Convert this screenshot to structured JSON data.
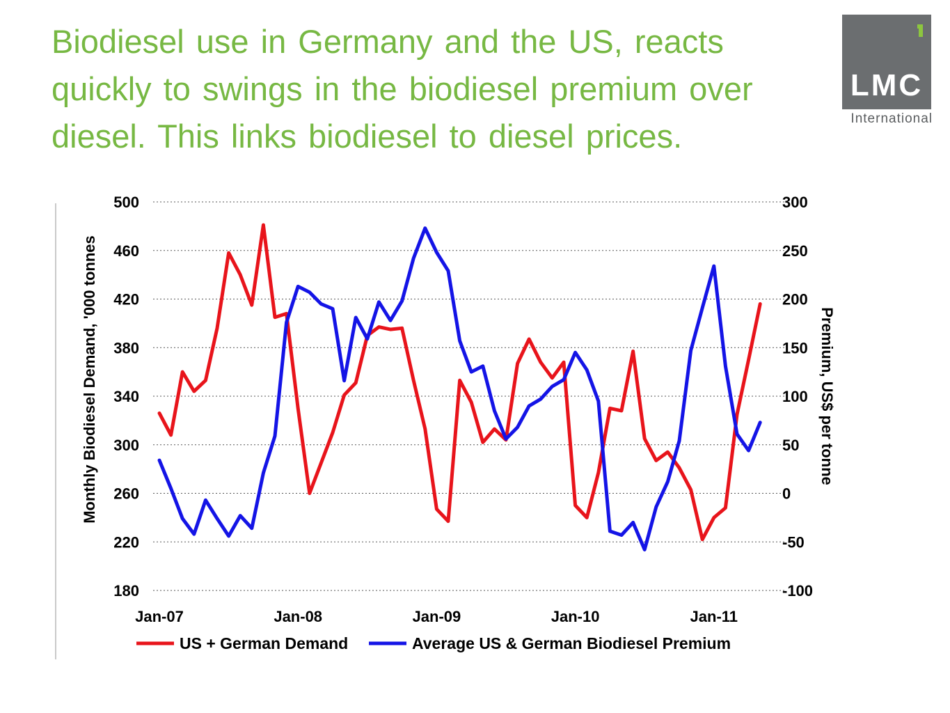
{
  "title": {
    "line1": "Biodiesel use in Germany and the US, reacts",
    "line2": "quickly to swings in the biodiesel premium over",
    "line3": "diesel. This links biodiesel to diesel prices."
  },
  "logo": {
    "text": "LMC",
    "subtext": "International"
  },
  "colors": {
    "title": "#77b843",
    "logo_bg": "#6b6e70",
    "logo_accent": "#8dc63f",
    "demand": "#e8141b",
    "premium": "#1414e6",
    "grid": "#555555"
  },
  "chart_data": {
    "type": "line",
    "title": "",
    "xlabel": "",
    "ylabel": "Monthly Biodiesel Demand, '000 tonnes",
    "y2label": "Premium, US$ per tonne",
    "ylim": [
      180,
      500
    ],
    "y2lim": [
      -100,
      300
    ],
    "yticks": [
      "500",
      "460",
      "420",
      "380",
      "340",
      "300",
      "260",
      "220",
      "180"
    ],
    "y2ticks": [
      "300",
      "250",
      "200",
      "150",
      "100",
      "50",
      "0",
      "-50",
      "-100"
    ],
    "x": [
      "Jan-07",
      "Feb-07",
      "Mar-07",
      "Apr-07",
      "May-07",
      "Jun-07",
      "Jul-07",
      "Aug-07",
      "Sep-07",
      "Oct-07",
      "Nov-07",
      "Dec-07",
      "Jan-08",
      "Feb-08",
      "Mar-08",
      "Apr-08",
      "May-08",
      "Jun-08",
      "Jul-08",
      "Aug-08",
      "Sep-08",
      "Oct-08",
      "Nov-08",
      "Dec-08",
      "Jan-09",
      "Feb-09",
      "Mar-09",
      "Apr-09",
      "May-09",
      "Jun-09",
      "Jul-09",
      "Aug-09",
      "Sep-09",
      "Oct-09",
      "Nov-09",
      "Dec-09",
      "Jan-10",
      "Feb-10",
      "Mar-10",
      "Apr-10",
      "May-10",
      "Jun-10",
      "Jul-10",
      "Aug-10",
      "Sep-10",
      "Oct-10",
      "Nov-10",
      "Dec-10",
      "Jan-11",
      "Feb-11",
      "Mar-11",
      "Apr-11",
      "May-11"
    ],
    "xtick_labels": [
      "Jan-07",
      "Jan-08",
      "Jan-09",
      "Jan-10",
      "Jan-11"
    ],
    "xtick_index": [
      0,
      12,
      24,
      36,
      48
    ],
    "grid": "horizontal dashed",
    "legend_position": "bottom",
    "series": [
      {
        "name": "US + German Demand",
        "axis": "left",
        "color": "#e8141b",
        "values": [
          326,
          308,
          360,
          344,
          353,
          396,
          458,
          440,
          415,
          481,
          405,
          408,
          330,
          260,
          285,
          310,
          341,
          351,
          390,
          397,
          395,
          396,
          353,
          313,
          247,
          237,
          353,
          335,
          302,
          313,
          304,
          367,
          387,
          368,
          355,
          368,
          250,
          240,
          277,
          330,
          328,
          377,
          305,
          287,
          294,
          281,
          263,
          222,
          240,
          248,
          325,
          370,
          416
        ]
      },
      {
        "name": "Average US & German Biodiesel Premium",
        "axis": "right",
        "color": "#1414e6",
        "values": [
          34,
          5,
          -26,
          -42,
          -7,
          -26,
          -44,
          -23,
          -36,
          21,
          59,
          176,
          213,
          207,
          195,
          190,
          116,
          181,
          159,
          197,
          178,
          198,
          242,
          273,
          248,
          229,
          157,
          125,
          131,
          85,
          56,
          68,
          90,
          97,
          110,
          117,
          145,
          127,
          95,
          -39,
          -43,
          -30,
          -58,
          -14,
          12,
          54,
          147,
          191,
          234,
          131,
          61,
          44,
          73
        ]
      }
    ]
  }
}
